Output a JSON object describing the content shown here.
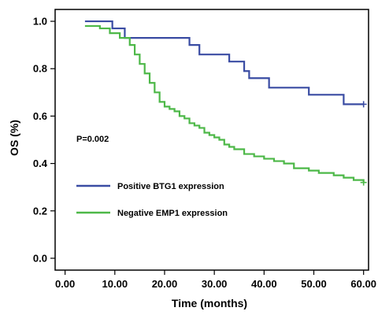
{
  "chart_data": {
    "type": "line",
    "xlabel": "Time (months)",
    "ylabel": "OS (%)",
    "xlim": [
      -2,
      61
    ],
    "ylim": [
      -0.05,
      1.05
    ],
    "x_ticks": [
      0,
      10,
      20,
      30,
      40,
      50,
      60
    ],
    "x_tick_labels": [
      "0.00",
      "10.00",
      "20.00",
      "30.00",
      "40.00",
      "50.00",
      "60.00"
    ],
    "y_ticks": [
      0,
      0.2,
      0.4,
      0.6,
      0.8,
      1.0
    ],
    "y_tick_labels": [
      "0.0",
      "0.2",
      "0.4",
      "0.6",
      "0.8",
      "1.0"
    ],
    "grid": false,
    "legend_position": "left-middle",
    "annotations": [
      {
        "text": "P=0.002"
      }
    ],
    "series": [
      {
        "name": "Positive BTG1 expression",
        "color": "#3a4ca3",
        "step": true,
        "x": [
          4,
          9.5,
          12,
          19,
          25,
          27,
          33,
          36,
          37,
          41,
          43,
          49,
          56,
          60
        ],
        "y": [
          1.0,
          0.97,
          0.93,
          0.93,
          0.9,
          0.86,
          0.83,
          0.79,
          0.76,
          0.72,
          0.72,
          0.69,
          0.65,
          0.65
        ]
      },
      {
        "name": "Negative EMP1 expression",
        "color": "#4db848",
        "step": true,
        "x": [
          4,
          7,
          9,
          11,
          13,
          14,
          15,
          16,
          17,
          18,
          19,
          20,
          21,
          22,
          23,
          24,
          25,
          26,
          27,
          28,
          29,
          30,
          31,
          32,
          33,
          34,
          36,
          38,
          40,
          42,
          44,
          46,
          49,
          51,
          54,
          56,
          58,
          60
        ],
        "y": [
          0.98,
          0.97,
          0.95,
          0.93,
          0.9,
          0.86,
          0.82,
          0.78,
          0.74,
          0.7,
          0.66,
          0.64,
          0.63,
          0.62,
          0.6,
          0.59,
          0.57,
          0.56,
          0.55,
          0.53,
          0.52,
          0.51,
          0.5,
          0.48,
          0.47,
          0.46,
          0.44,
          0.43,
          0.42,
          0.41,
          0.4,
          0.38,
          0.37,
          0.36,
          0.35,
          0.34,
          0.33,
          0.32
        ]
      }
    ]
  }
}
